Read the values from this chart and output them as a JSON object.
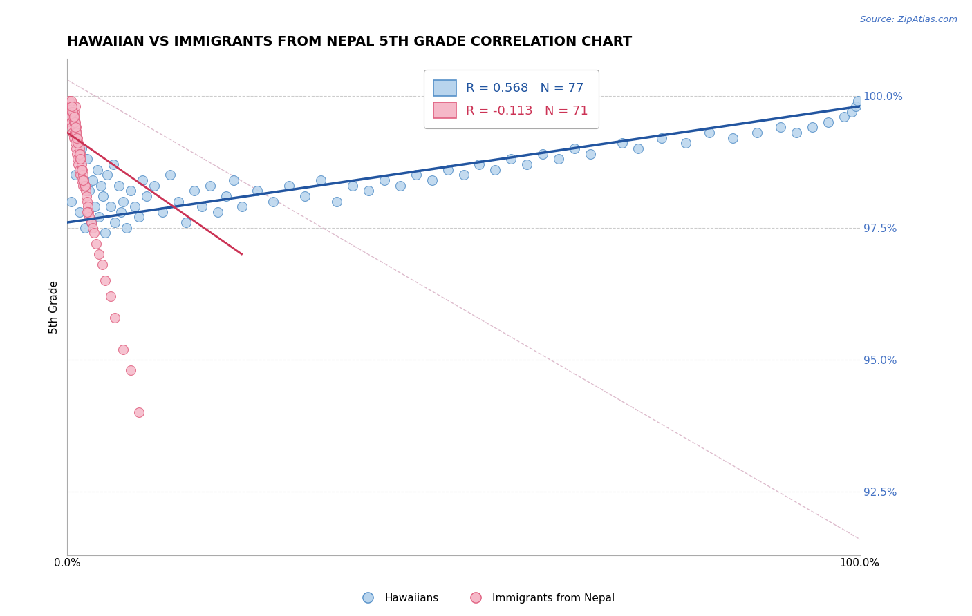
{
  "title": "HAWAIIAN VS IMMIGRANTS FROM NEPAL 5TH GRADE CORRELATION CHART",
  "source": "Source: ZipAtlas.com",
  "ylabel": "5th Grade",
  "yaxis_labels": [
    "100.0%",
    "97.5%",
    "95.0%",
    "92.5%"
  ],
  "yaxis_values": [
    1.0,
    0.975,
    0.95,
    0.925
  ],
  "xmin": 0.0,
  "xmax": 1.0,
  "ymin": 0.913,
  "ymax": 1.007,
  "legend_blue_r": "0.568",
  "legend_blue_n": "77",
  "legend_pink_r": "-0.113",
  "legend_pink_n": "71",
  "blue_color": "#b8d4ed",
  "pink_color": "#f5b8c8",
  "blue_edge_color": "#5590c8",
  "pink_edge_color": "#e06080",
  "blue_line_color": "#2255a0",
  "pink_line_color": "#cc3355",
  "dot_size": 100,
  "hawaiians_x": [
    0.005,
    0.01,
    0.015,
    0.018,
    0.022,
    0.025,
    0.028,
    0.03,
    0.032,
    0.035,
    0.038,
    0.04,
    0.042,
    0.045,
    0.048,
    0.05,
    0.055,
    0.058,
    0.06,
    0.065,
    0.068,
    0.07,
    0.075,
    0.08,
    0.085,
    0.09,
    0.095,
    0.1,
    0.11,
    0.12,
    0.13,
    0.14,
    0.15,
    0.16,
    0.17,
    0.18,
    0.19,
    0.2,
    0.21,
    0.22,
    0.24,
    0.26,
    0.28,
    0.3,
    0.32,
    0.34,
    0.36,
    0.38,
    0.4,
    0.42,
    0.44,
    0.46,
    0.48,
    0.5,
    0.52,
    0.54,
    0.56,
    0.58,
    0.6,
    0.62,
    0.64,
    0.66,
    0.7,
    0.72,
    0.75,
    0.78,
    0.81,
    0.84,
    0.87,
    0.9,
    0.92,
    0.94,
    0.96,
    0.98,
    0.99,
    0.995,
    0.998
  ],
  "hawaiians_y": [
    0.98,
    0.985,
    0.978,
    0.99,
    0.975,
    0.988,
    0.982,
    0.976,
    0.984,
    0.979,
    0.986,
    0.977,
    0.983,
    0.981,
    0.974,
    0.985,
    0.979,
    0.987,
    0.976,
    0.983,
    0.978,
    0.98,
    0.975,
    0.982,
    0.979,
    0.977,
    0.984,
    0.981,
    0.983,
    0.978,
    0.985,
    0.98,
    0.976,
    0.982,
    0.979,
    0.983,
    0.978,
    0.981,
    0.984,
    0.979,
    0.982,
    0.98,
    0.983,
    0.981,
    0.984,
    0.98,
    0.983,
    0.982,
    0.984,
    0.983,
    0.985,
    0.984,
    0.986,
    0.985,
    0.987,
    0.986,
    0.988,
    0.987,
    0.989,
    0.988,
    0.99,
    0.989,
    0.991,
    0.99,
    0.992,
    0.991,
    0.993,
    0.992,
    0.993,
    0.994,
    0.993,
    0.994,
    0.995,
    0.996,
    0.997,
    0.998,
    0.999
  ],
  "nepal_x": [
    0.002,
    0.003,
    0.004,
    0.004,
    0.005,
    0.005,
    0.006,
    0.006,
    0.007,
    0.007,
    0.008,
    0.008,
    0.008,
    0.009,
    0.009,
    0.01,
    0.01,
    0.01,
    0.011,
    0.011,
    0.012,
    0.012,
    0.013,
    0.013,
    0.014,
    0.014,
    0.015,
    0.015,
    0.016,
    0.016,
    0.017,
    0.018,
    0.018,
    0.019,
    0.02,
    0.02,
    0.021,
    0.022,
    0.023,
    0.024,
    0.025,
    0.026,
    0.027,
    0.028,
    0.03,
    0.032,
    0.034,
    0.036,
    0.04,
    0.044,
    0.048,
    0.055,
    0.06,
    0.07,
    0.08,
    0.09,
    0.005,
    0.007,
    0.009,
    0.011,
    0.013,
    0.015,
    0.018,
    0.022,
    0.006,
    0.008,
    0.01,
    0.012,
    0.016,
    0.02,
    0.025
  ],
  "nepal_y": [
    0.999,
    0.998,
    0.997,
    0.996,
    0.998,
    0.995,
    0.997,
    0.994,
    0.996,
    0.993,
    0.997,
    0.995,
    0.992,
    0.996,
    0.993,
    0.998,
    0.995,
    0.991,
    0.994,
    0.99,
    0.993,
    0.989,
    0.992,
    0.988,
    0.991,
    0.987,
    0.99,
    0.986,
    0.989,
    0.985,
    0.988,
    0.987,
    0.984,
    0.986,
    0.985,
    0.983,
    0.984,
    0.983,
    0.982,
    0.981,
    0.98,
    0.979,
    0.978,
    0.977,
    0.976,
    0.975,
    0.974,
    0.972,
    0.97,
    0.968,
    0.965,
    0.962,
    0.958,
    0.952,
    0.948,
    0.94,
    0.999,
    0.997,
    0.995,
    0.993,
    0.991,
    0.989,
    0.986,
    0.983,
    0.998,
    0.996,
    0.994,
    0.992,
    0.988,
    0.984,
    0.978
  ],
  "ref_line_x": [
    0.0,
    1.0
  ],
  "ref_line_y": [
    1.003,
    0.916
  ],
  "blue_trend_x": [
    0.0,
    1.0
  ],
  "blue_trend_y": [
    0.976,
    0.998
  ],
  "pink_trend_x": [
    0.0,
    0.22
  ],
  "pink_trend_y": [
    0.993,
    0.97
  ]
}
